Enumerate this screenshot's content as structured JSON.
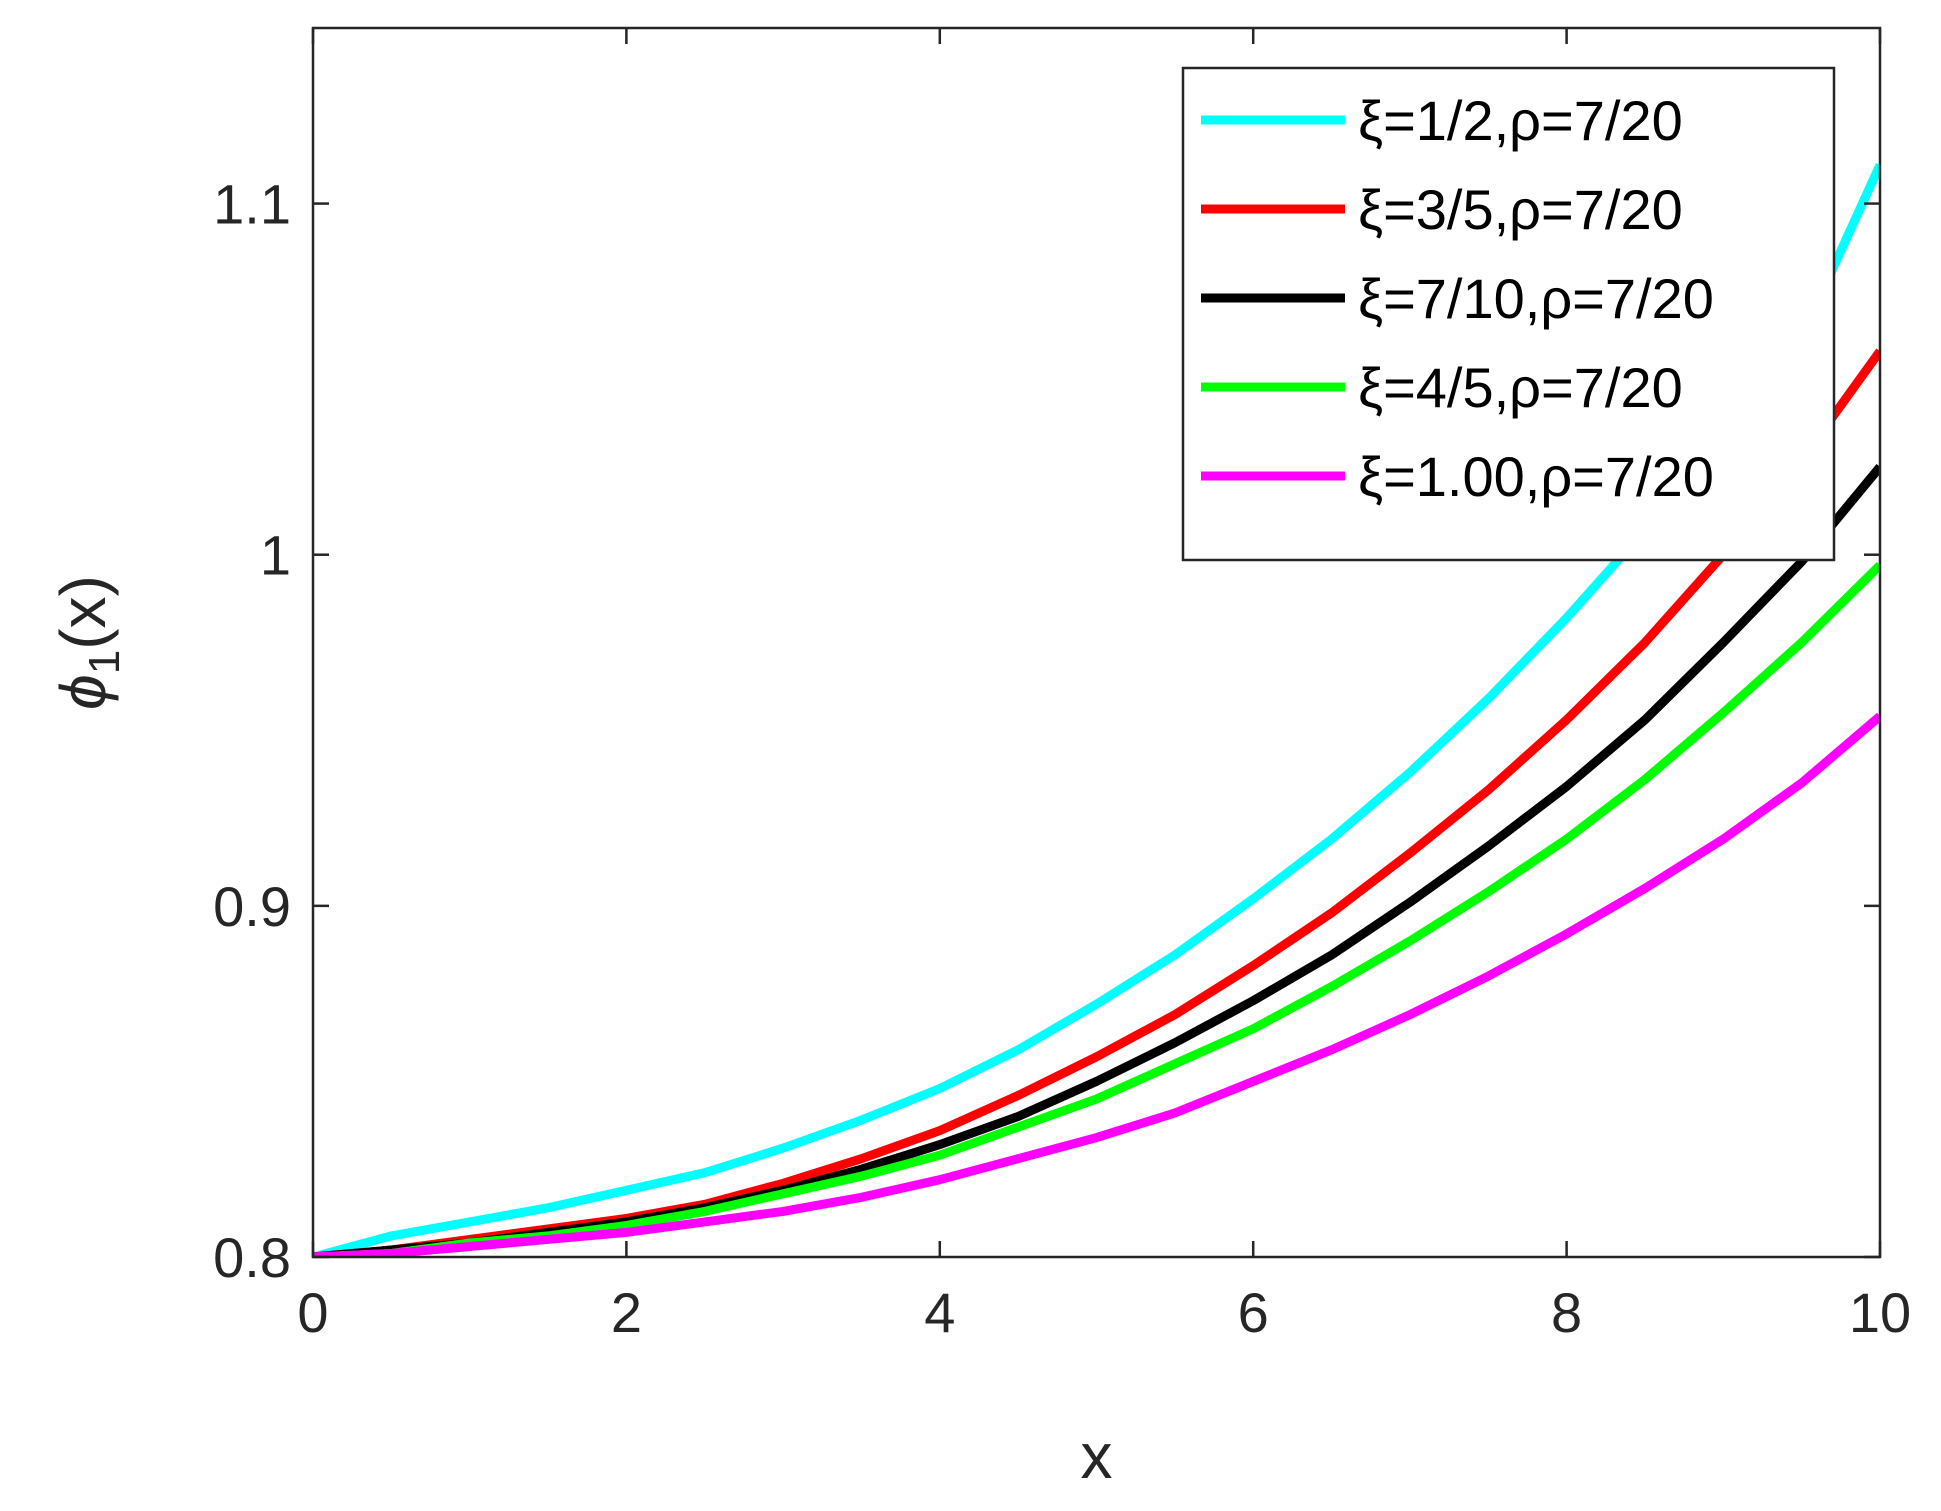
{
  "chart_data": {
    "type": "line",
    "xlabel": "x",
    "ylabel": {
      "symbol": "ϕ",
      "subscript": "1",
      "suffix": "(x)"
    },
    "xlim": [
      0,
      10
    ],
    "ylim": [
      0.8,
      1.15
    ],
    "xticks": [
      0,
      2,
      4,
      6,
      8,
      10
    ],
    "xtick_labels": [
      "0",
      "2",
      "4",
      "6",
      "8",
      "10"
    ],
    "yticks": [
      0.8,
      0.9,
      1.0,
      1.1
    ],
    "ytick_labels": [
      "0.8",
      "0.9",
      "1",
      "1.1"
    ],
    "grid": false,
    "legend_position": "top-right",
    "x": [
      0,
      0.5,
      1,
      1.5,
      2,
      2.5,
      3,
      3.5,
      4,
      4.5,
      5,
      5.5,
      6,
      6.5,
      7,
      7.5,
      8,
      8.5,
      9,
      9.5,
      10
    ],
    "series": [
      {
        "name": "ξ=1/2,ρ=7/20",
        "color": "#00ffff",
        "values": [
          0.8,
          0.806,
          0.81,
          0.814,
          0.819,
          0.824,
          0.831,
          0.839,
          0.848,
          0.859,
          0.872,
          0.886,
          0.902,
          0.919,
          0.938,
          0.959,
          0.982,
          1.007,
          1.034,
          1.062,
          1.111
        ]
      },
      {
        "name": "ξ=3/5,ρ=7/20",
        "color": "#ff0000",
        "values": [
          0.8,
          0.802,
          0.805,
          0.808,
          0.811,
          0.815,
          0.821,
          0.828,
          0.836,
          0.846,
          0.857,
          0.869,
          0.883,
          0.898,
          0.915,
          0.933,
          0.953,
          0.975,
          1.0,
          1.027,
          1.058
        ]
      },
      {
        "name": "ξ=7/10,ρ=7/20",
        "color": "#000000",
        "values": [
          0.8,
          0.802,
          0.804,
          0.807,
          0.81,
          0.814,
          0.819,
          0.825,
          0.832,
          0.84,
          0.85,
          0.861,
          0.873,
          0.886,
          0.901,
          0.917,
          0.934,
          0.953,
          0.975,
          0.998,
          1.025
        ]
      },
      {
        "name": "ξ=4/5,ρ=7/20",
        "color": "#00ff00",
        "values": [
          0.8,
          0.801,
          0.804,
          0.806,
          0.809,
          0.813,
          0.818,
          0.823,
          0.829,
          0.837,
          0.845,
          0.855,
          0.865,
          0.877,
          0.89,
          0.904,
          0.919,
          0.936,
          0.955,
          0.975,
          0.997
        ]
      },
      {
        "name": "ξ=1.00,ρ=7/20",
        "color": "#ff00ff",
        "values": [
          0.8,
          0.801,
          0.803,
          0.805,
          0.807,
          0.81,
          0.813,
          0.817,
          0.822,
          0.828,
          0.834,
          0.841,
          0.85,
          0.859,
          0.869,
          0.88,
          0.892,
          0.905,
          0.919,
          0.935,
          0.954
        ]
      }
    ]
  }
}
